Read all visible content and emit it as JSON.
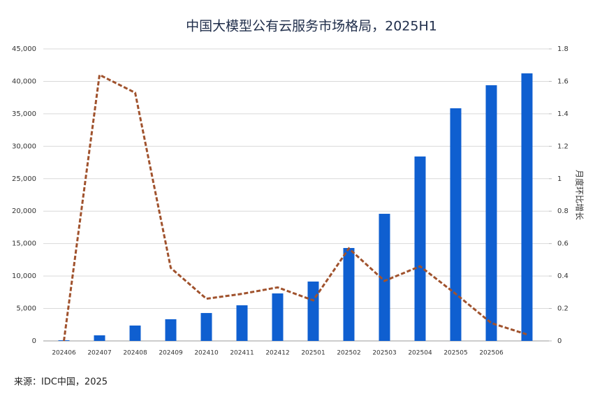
{
  "chart_data": {
    "type": "bar",
    "title": "中国大模型公有云服务市场格局，2025H1",
    "y2label": "月度环比增长",
    "source": "来源：IDC中国，2025",
    "categories": [
      "202406",
      "202407",
      "202408",
      "202409",
      "202410",
      "202411",
      "202412",
      "202501",
      "202502",
      "202503",
      "202504",
      "202505",
      "202506",
      null
    ],
    "series": [
      {
        "type": "bar",
        "color": "#0f5fd0",
        "values": [
          100,
          860,
          2370,
          3340,
          4300,
          5490,
          7320,
          9150,
          14320,
          19590,
          28420,
          35850,
          39400,
          41230
        ]
      },
      {
        "type": "line",
        "axis": "y2",
        "color": "#a0522d",
        "values": [
          0,
          1.64,
          1.53,
          0.45,
          0.26,
          0.29,
          0.33,
          0.25,
          0.57,
          0.37,
          0.46,
          0.29,
          0.11,
          0.04
        ]
      }
    ],
    "ylim": [
      0,
      45000
    ],
    "yticks": [
      0,
      {
        "value": 5000,
        "label": "5,000"
      },
      {
        "value": 10000,
        "label": "10,000"
      },
      {
        "value": 15000,
        "label": "15,000"
      },
      {
        "value": 20000,
        "label": "20,000"
      },
      {
        "value": 25000,
        "label": "25,000"
      },
      {
        "value": 30000,
        "label": "30,000"
      },
      {
        "value": 35000,
        "label": "35,000"
      },
      {
        "value": 40000,
        "label": "40,000"
      },
      {
        "value": 45000,
        "label": "45,000"
      }
    ],
    "y2lim": [
      0,
      1.8
    ],
    "y2ticks": [
      0,
      0.2,
      0.4,
      0.6,
      0.8,
      1,
      1.2,
      1.4,
      1.6,
      1.8
    ],
    "grid": true
  }
}
